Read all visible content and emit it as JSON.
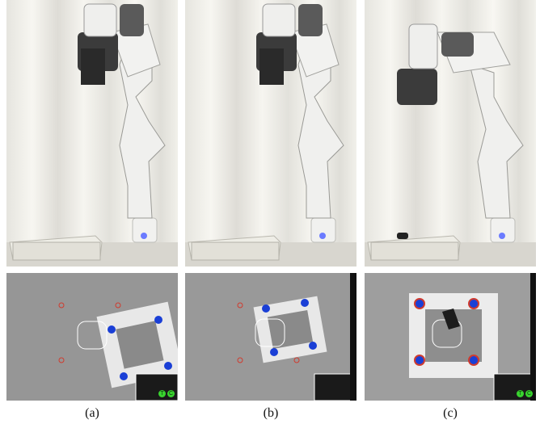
{
  "figure": {
    "panels": [
      {
        "label": "(a)",
        "camera_indicators": [
          "T",
          "C"
        ]
      },
      {
        "label": "(b)",
        "camera_indicators": []
      },
      {
        "label": "(c)",
        "camera_indicators": [
          "T",
          "C"
        ]
      }
    ]
  },
  "colors": {
    "curtain_light": "#f4f3ee",
    "curtain_dark": "#d9d8d2",
    "robot_white": "#f2f2f0",
    "robot_joint": "#3a3a3a",
    "tray": "#e9e8e2",
    "camera_bg": "#8c8c8c",
    "marker_blue": "#1a3fd6",
    "marker_ring": "#d03b2e",
    "indicator_green": "#39d32f"
  }
}
